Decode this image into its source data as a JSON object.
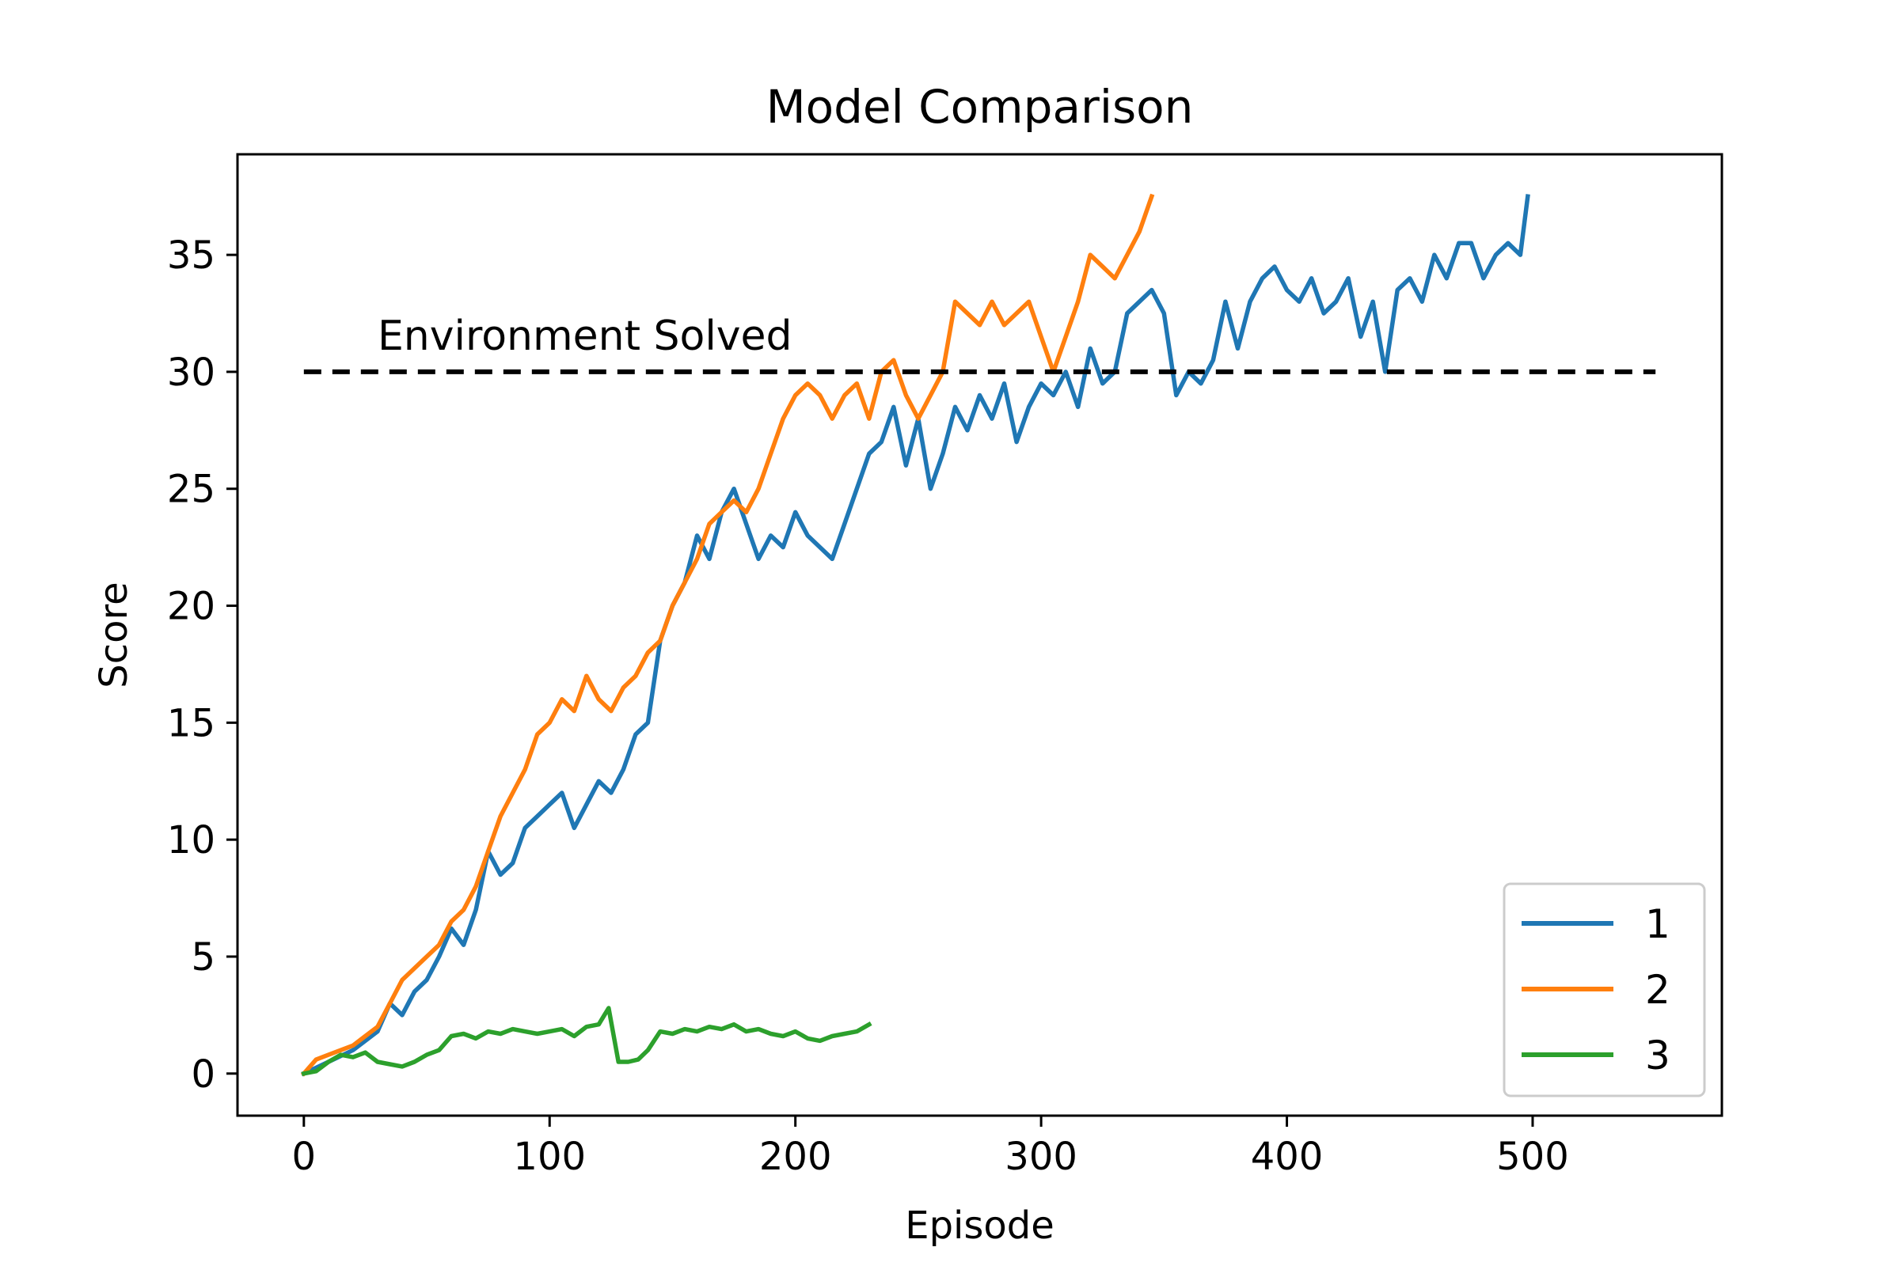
{
  "chart_data": {
    "type": "line",
    "title": "Model Comparison",
    "xlabel": "Episode",
    "ylabel": "Score",
    "xlim": [
      -27,
      577
    ],
    "ylim": [
      -1.8,
      39.3
    ],
    "xticks": [
      0,
      100,
      200,
      300,
      400,
      500
    ],
    "yticks": [
      0,
      5,
      10,
      15,
      20,
      25,
      30,
      35
    ],
    "grid": false,
    "legend": {
      "position": "lower-right"
    },
    "threshold": {
      "y": 30,
      "x_start": 0,
      "x_end": 550,
      "label": "Environment Solved",
      "label_x": 30,
      "color": "#000000"
    },
    "series": [
      {
        "name": "1",
        "color": "#1f77b4",
        "x": [
          0,
          10,
          20,
          30,
          35,
          40,
          45,
          50,
          55,
          60,
          65,
          70,
          75,
          80,
          85,
          90,
          95,
          100,
          105,
          110,
          115,
          120,
          125,
          130,
          135,
          140,
          145,
          150,
          155,
          160,
          165,
          170,
          175,
          180,
          185,
          190,
          195,
          200,
          205,
          210,
          215,
          220,
          225,
          230,
          235,
          240,
          245,
          250,
          255,
          260,
          265,
          270,
          275,
          280,
          285,
          290,
          295,
          300,
          305,
          310,
          315,
          320,
          325,
          330,
          335,
          340,
          345,
          350,
          355,
          360,
          365,
          370,
          375,
          380,
          385,
          390,
          395,
          400,
          405,
          410,
          415,
          420,
          425,
          430,
          435,
          440,
          445,
          450,
          455,
          460,
          465,
          470,
          475,
          480,
          485,
          490,
          495,
          498
        ],
        "y": [
          0,
          0.5,
          1.0,
          1.8,
          3.0,
          2.5,
          3.5,
          4.0,
          5.0,
          6.2,
          5.5,
          7.0,
          9.5,
          8.5,
          9.0,
          10.5,
          11.0,
          11.5,
          12.0,
          10.5,
          11.5,
          12.5,
          12.0,
          13.0,
          14.5,
          15.0,
          18.5,
          20.0,
          21.0,
          23.0,
          22.0,
          24.0,
          25.0,
          23.5,
          22.0,
          23.0,
          22.5,
          24.0,
          23.0,
          22.5,
          22.0,
          23.5,
          25.0,
          26.5,
          27.0,
          28.5,
          26.0,
          28.0,
          25.0,
          26.5,
          28.5,
          27.5,
          29.0,
          28.0,
          29.5,
          27.0,
          28.5,
          29.5,
          29.0,
          30.0,
          28.5,
          31.0,
          29.5,
          30.0,
          32.5,
          33.0,
          33.5,
          32.5,
          29.0,
          30.0,
          29.5,
          30.5,
          33.0,
          31.0,
          33.0,
          34.0,
          34.5,
          33.5,
          33.0,
          34.0,
          32.5,
          33.0,
          34.0,
          31.5,
          33.0,
          30.0,
          33.5,
          34.0,
          33.0,
          35.0,
          34.0,
          35.5,
          35.5,
          34.0,
          35.0,
          35.5,
          35.0,
          37.5
        ]
      },
      {
        "name": "2",
        "color": "#ff7f0e",
        "x": [
          0,
          5,
          10,
          15,
          20,
          25,
          30,
          35,
          40,
          45,
          50,
          55,
          60,
          65,
          70,
          75,
          80,
          85,
          90,
          95,
          100,
          105,
          110,
          115,
          120,
          125,
          130,
          135,
          140,
          145,
          150,
          155,
          160,
          165,
          170,
          175,
          180,
          185,
          190,
          195,
          200,
          205,
          210,
          215,
          220,
          225,
          230,
          235,
          240,
          245,
          250,
          255,
          260,
          265,
          270,
          275,
          280,
          285,
          290,
          295,
          300,
          305,
          310,
          315,
          320,
          325,
          330,
          335,
          340,
          345
        ],
        "y": [
          0,
          0.6,
          0.8,
          1.0,
          1.2,
          1.6,
          2.0,
          3.0,
          4.0,
          4.5,
          5.0,
          5.5,
          6.5,
          7.0,
          8.0,
          9.5,
          11.0,
          12.0,
          13.0,
          14.5,
          15.0,
          16.0,
          15.5,
          17.0,
          16.0,
          15.5,
          16.5,
          17.0,
          18.0,
          18.5,
          20.0,
          21.0,
          22.0,
          23.5,
          24.0,
          24.5,
          24.0,
          25.0,
          26.5,
          28.0,
          29.0,
          29.5,
          29.0,
          28.0,
          29.0,
          29.5,
          28.0,
          30.0,
          30.5,
          29.0,
          28.0,
          29.0,
          30.0,
          33.0,
          32.5,
          32.0,
          33.0,
          32.0,
          32.5,
          33.0,
          31.5,
          30.0,
          31.5,
          33.0,
          35.0,
          34.5,
          34.0,
          35.0,
          36.0,
          37.5
        ]
      },
      {
        "name": "3",
        "color": "#2ca02c",
        "x": [
          0,
          5,
          10,
          15,
          20,
          25,
          30,
          35,
          40,
          45,
          50,
          55,
          60,
          65,
          70,
          75,
          80,
          85,
          90,
          95,
          100,
          105,
          110,
          115,
          120,
          124,
          128,
          132,
          136,
          140,
          145,
          150,
          155,
          160,
          165,
          170,
          175,
          180,
          185,
          190,
          195,
          200,
          205,
          210,
          215,
          220,
          225,
          230
        ],
        "y": [
          0,
          0.1,
          0.5,
          0.8,
          0.7,
          0.9,
          0.5,
          0.4,
          0.3,
          0.5,
          0.8,
          1.0,
          1.6,
          1.7,
          1.5,
          1.8,
          1.7,
          1.9,
          1.8,
          1.7,
          1.8,
          1.9,
          1.6,
          2.0,
          2.1,
          2.8,
          0.5,
          0.5,
          0.6,
          1.0,
          1.8,
          1.7,
          1.9,
          1.8,
          2.0,
          1.9,
          2.1,
          1.8,
          1.9,
          1.7,
          1.6,
          1.8,
          1.5,
          1.4,
          1.6,
          1.7,
          1.8,
          2.1
        ]
      }
    ]
  }
}
